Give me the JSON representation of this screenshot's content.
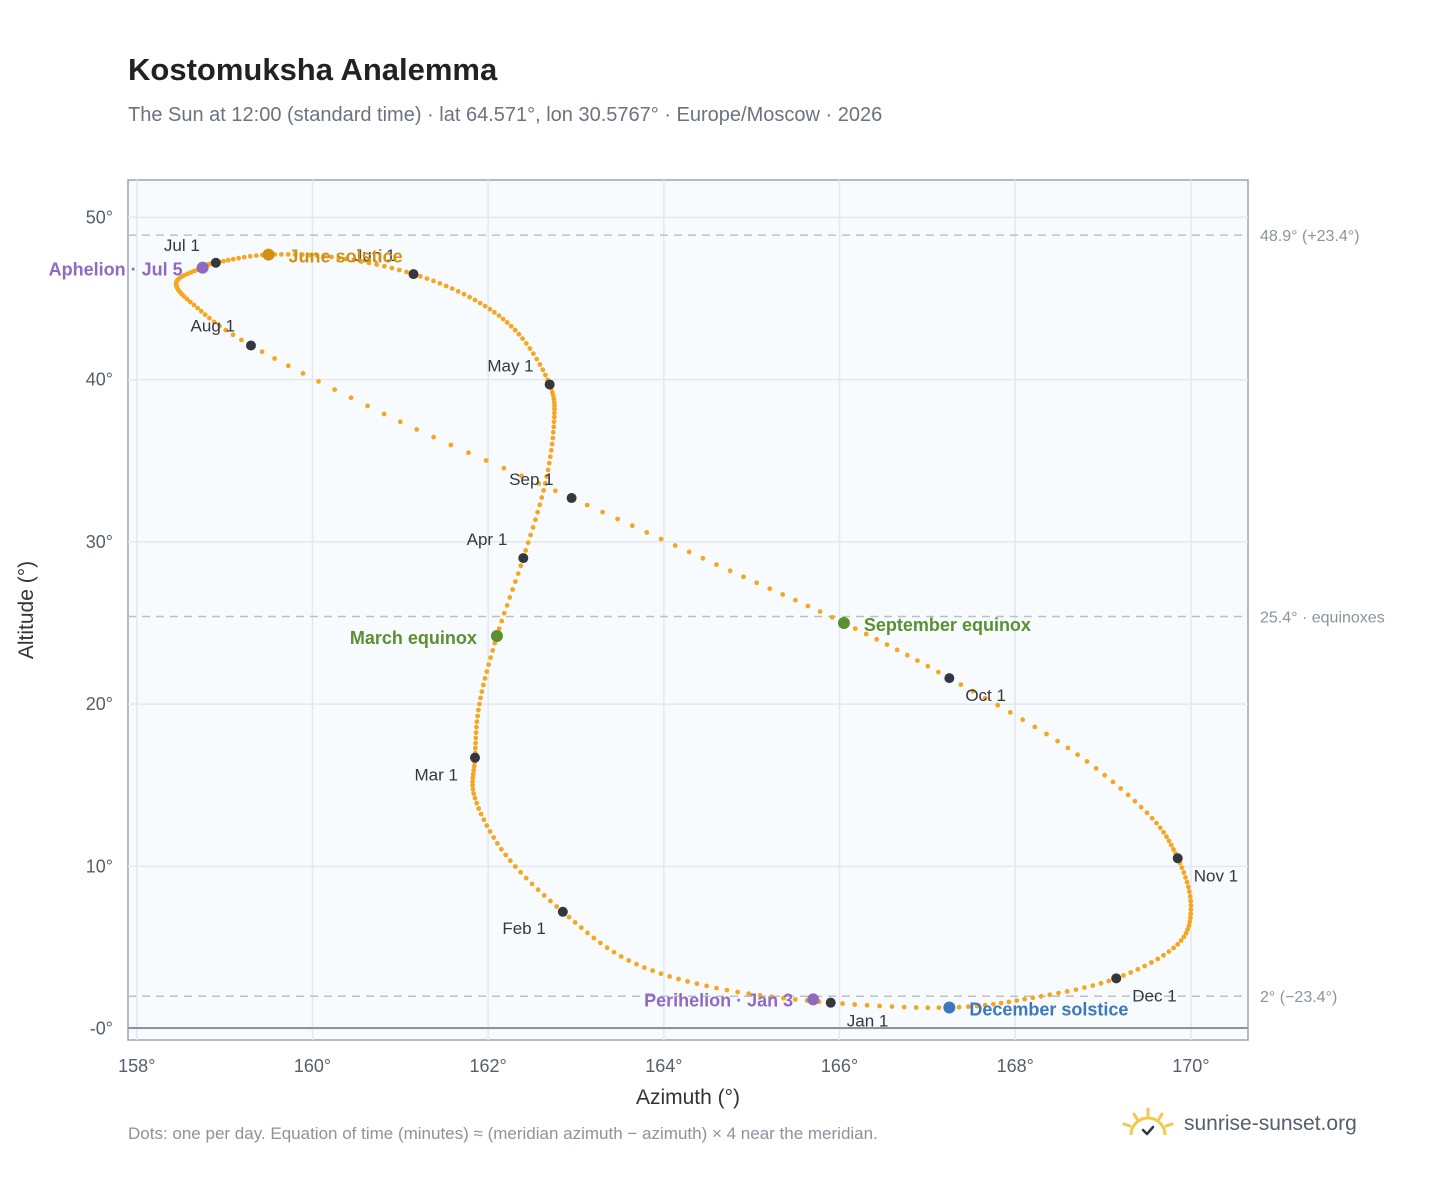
{
  "title": "Kostomuksha Analemma",
  "subtitle": "The Sun at 12:00 (standard time) · lat 64.571°, lon 30.5767° · Europe/Moscow · 2026",
  "footnote": "Dots: one per day. Equation of time (minutes) ≈ (meridian azimuth − azimuth) × 4 near the meridian.",
  "brand": {
    "name": "sunrise-sunset.org",
    "logo_icon": "sun-logo-icon"
  },
  "colors": {
    "curve": "#f5a623",
    "month_marker": "#333840",
    "aphelion_perihelion": "#8e6ac1",
    "june_solstice": "#d19114",
    "december_solstice": "#3a78c0",
    "equinox": "#5a8f32",
    "plot_bg": "#f8fbfd",
    "grid": "#e3e8ee",
    "reference_line": "#b9c2cb"
  },
  "chart_data": {
    "type": "scatter",
    "title": "Kostomuksha Analemma",
    "xlabel": "Azimuth (°)",
    "ylabel": "Altitude (°)",
    "xlim": [
      157.9,
      170.65
    ],
    "ylim": [
      -0.7,
      52.3
    ],
    "x_ticks": [
      158,
      160,
      162,
      164,
      166,
      168,
      170
    ],
    "x_tick_labels": [
      "158°",
      "160°",
      "162°",
      "164°",
      "166°",
      "168°",
      "170°"
    ],
    "y_ticks": [
      0,
      10,
      20,
      30,
      40,
      50
    ],
    "y_tick_labels": [
      "-0°",
      "10°",
      "20°",
      "30°",
      "40°",
      "50°"
    ],
    "grid": true,
    "reference_lines": [
      {
        "altitude": 48.9,
        "label": "48.9° (+23.4°)"
      },
      {
        "altitude": 25.4,
        "label": "25.4° · equinoxes"
      },
      {
        "altitude": 2.0,
        "label": "2° (−23.4°)"
      }
    ],
    "month_markers": [
      {
        "label": "Jan 1",
        "az": 165.9,
        "alt": 1.6
      },
      {
        "label": "Feb 1",
        "az": 162.85,
        "alt": 7.2
      },
      {
        "label": "Mar 1",
        "az": 161.85,
        "alt": 16.7
      },
      {
        "label": "Apr 1",
        "az": 162.4,
        "alt": 29.0
      },
      {
        "label": "May 1",
        "az": 162.7,
        "alt": 39.7
      },
      {
        "label": "Jun 1",
        "az": 161.15,
        "alt": 46.5
      },
      {
        "label": "Jul 1",
        "az": 158.9,
        "alt": 47.2
      },
      {
        "label": "Aug 1",
        "az": 159.3,
        "alt": 42.1
      },
      {
        "label": "Sep 1",
        "az": 162.95,
        "alt": 32.7
      },
      {
        "label": "Oct 1",
        "az": 167.25,
        "alt": 21.6
      },
      {
        "label": "Nov 1",
        "az": 169.85,
        "alt": 10.5
      },
      {
        "label": "Dec 1",
        "az": 169.15,
        "alt": 3.1
      }
    ],
    "events": [
      {
        "label": "Aphelion · Jul 5",
        "kind": "aphelion",
        "az": 158.75,
        "alt": 46.9
      },
      {
        "label": "June solstice",
        "kind": "june_solstice",
        "az": 159.5,
        "alt": 47.7
      },
      {
        "label": "March equinox",
        "kind": "equinox",
        "az": 162.1,
        "alt": 24.2
      },
      {
        "label": "September equinox",
        "kind": "equinox",
        "az": 166.05,
        "alt": 25.0
      },
      {
        "label": "Perihelion · Jan 3",
        "kind": "perihelion",
        "az": 165.7,
        "alt": 1.8
      },
      {
        "label": "December solstice",
        "kind": "december_solstice",
        "az": 167.25,
        "alt": 1.3
      }
    ],
    "path": [
      {
        "az": 167.25,
        "alt": 1.3
      },
      {
        "az": 165.9,
        "alt": 1.6
      },
      {
        "az": 164.6,
        "alt": 2.5
      },
      {
        "az": 163.6,
        "alt": 4.2
      },
      {
        "az": 162.85,
        "alt": 7.2
      },
      {
        "az": 162.2,
        "alt": 10.7
      },
      {
        "az": 161.85,
        "alt": 14.2
      },
      {
        "az": 161.85,
        "alt": 16.7
      },
      {
        "az": 161.9,
        "alt": 20.0
      },
      {
        "az": 162.1,
        "alt": 24.2
      },
      {
        "az": 162.4,
        "alt": 29.0
      },
      {
        "az": 162.65,
        "alt": 33.6
      },
      {
        "az": 162.75,
        "alt": 37.4
      },
      {
        "az": 162.7,
        "alt": 39.7
      },
      {
        "az": 162.35,
        "alt": 42.8
      },
      {
        "az": 161.85,
        "alt": 44.9
      },
      {
        "az": 161.15,
        "alt": 46.5
      },
      {
        "az": 160.3,
        "alt": 47.5
      },
      {
        "az": 159.5,
        "alt": 47.7
      },
      {
        "az": 158.9,
        "alt": 47.2
      },
      {
        "az": 158.75,
        "alt": 46.9
      },
      {
        "az": 158.45,
        "alt": 46.0
      },
      {
        "az": 158.65,
        "alt": 44.6
      },
      {
        "az": 159.3,
        "alt": 42.1
      },
      {
        "az": 161.0,
        "alt": 37.4
      },
      {
        "az": 162.95,
        "alt": 32.7
      },
      {
        "az": 164.6,
        "alt": 28.6
      },
      {
        "az": 166.05,
        "alt": 25.0
      },
      {
        "az": 167.25,
        "alt": 21.6
      },
      {
        "az": 168.6,
        "alt": 17.3
      },
      {
        "az": 169.5,
        "alt": 13.3
      },
      {
        "az": 169.85,
        "alt": 10.5
      },
      {
        "az": 170.0,
        "alt": 7.6
      },
      {
        "az": 169.85,
        "alt": 5.2
      },
      {
        "az": 169.15,
        "alt": 3.1
      },
      {
        "az": 168.2,
        "alt": 1.9
      },
      {
        "az": 167.25,
        "alt": 1.3
      }
    ]
  }
}
